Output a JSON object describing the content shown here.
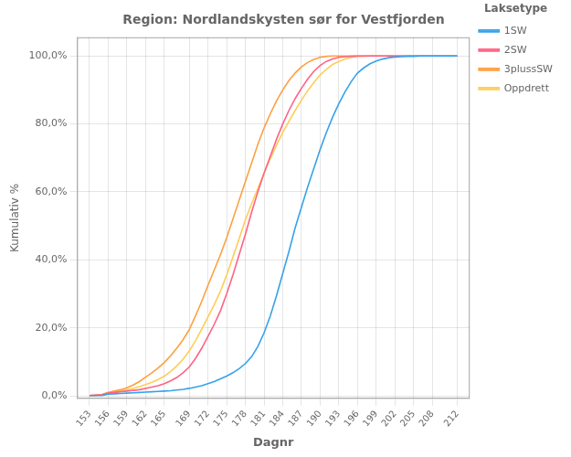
{
  "chart_data": {
    "type": "line",
    "title": "Region: Nordlandskysten sør for Vestfjorden",
    "x_label": "Dagnr",
    "y_label": "Kumulativ %",
    "legend_title": "Laksetype",
    "legend": "right",
    "grid": true,
    "xlim": [
      151,
      214
    ],
    "ylim": [
      -0.008,
      1.055
    ],
    "xticks": [
      153,
      156,
      159,
      162,
      165,
      169,
      172,
      175,
      178,
      181,
      184,
      187,
      190,
      193,
      196,
      199,
      202,
      205,
      208,
      212
    ],
    "yticks": [
      {
        "value": 0.0,
        "label": "0,0%"
      },
      {
        "value": 0.2,
        "label": "20,0%"
      },
      {
        "value": 0.4,
        "label": "40,0%"
      },
      {
        "value": 0.6,
        "label": "60,0%"
      },
      {
        "value": 0.8,
        "label": "80,0%"
      },
      {
        "value": 1.0,
        "label": "100,0%"
      }
    ],
    "x": [
      153,
      154,
      155,
      156,
      157,
      158,
      159,
      160,
      161,
      162,
      163,
      164,
      165,
      166,
      167,
      168,
      169,
      170,
      171,
      172,
      173,
      174,
      175,
      176,
      177,
      178,
      179,
      180,
      181,
      182,
      183,
      184,
      185,
      186,
      187,
      188,
      189,
      190,
      191,
      192,
      193,
      194,
      195,
      196,
      197,
      198,
      199,
      200,
      201,
      202,
      203,
      204,
      205,
      206,
      207,
      208,
      209,
      210,
      211,
      212
    ],
    "series": [
      {
        "name": "1SW",
        "values": [
          0.001,
          0.001,
          0.001,
          0.005,
          0.006,
          0.007,
          0.008,
          0.009,
          0.01,
          0.011,
          0.012,
          0.013,
          0.014,
          0.015,
          0.017,
          0.019,
          0.022,
          0.026,
          0.03,
          0.036,
          0.042,
          0.05,
          0.058,
          0.068,
          0.08,
          0.095,
          0.115,
          0.145,
          0.185,
          0.235,
          0.295,
          0.36,
          0.425,
          0.495,
          0.555,
          0.615,
          0.67,
          0.725,
          0.775,
          0.82,
          0.86,
          0.895,
          0.925,
          0.95,
          0.965,
          0.977,
          0.985,
          0.991,
          0.995,
          0.997,
          0.998,
          0.999,
          0.999,
          1.0,
          1.0,
          1.0,
          1.0,
          1.0,
          1.0,
          1.0
        ]
      },
      {
        "name": "2SW",
        "values": [
          0.001,
          0.002,
          0.003,
          0.008,
          0.01,
          0.012,
          0.014,
          0.016,
          0.018,
          0.022,
          0.026,
          0.03,
          0.036,
          0.044,
          0.054,
          0.068,
          0.085,
          0.11,
          0.14,
          0.175,
          0.21,
          0.25,
          0.3,
          0.355,
          0.415,
          0.475,
          0.54,
          0.6,
          0.655,
          0.705,
          0.755,
          0.8,
          0.84,
          0.875,
          0.905,
          0.932,
          0.955,
          0.972,
          0.984,
          0.991,
          0.996,
          0.998,
          0.999,
          1.0,
          1.0,
          1.0,
          1.0,
          1.0,
          1.0,
          1.0,
          1.0,
          1.0,
          1.0,
          1.0,
          1.0,
          1.0,
          1.0,
          1.0,
          1.0,
          1.0
        ]
      },
      {
        "name": "3plussSW",
        "values": [
          0.001,
          0.002,
          0.004,
          0.01,
          0.014,
          0.018,
          0.024,
          0.032,
          0.042,
          0.055,
          0.068,
          0.082,
          0.098,
          0.118,
          0.14,
          0.165,
          0.195,
          0.235,
          0.278,
          0.325,
          0.37,
          0.415,
          0.465,
          0.52,
          0.575,
          0.63,
          0.685,
          0.74,
          0.788,
          0.83,
          0.868,
          0.9,
          0.928,
          0.95,
          0.968,
          0.981,
          0.99,
          0.996,
          0.999,
          1.0,
          1.0,
          1.0,
          1.0,
          1.0,
          1.0,
          1.0,
          1.0,
          1.0,
          1.0,
          1.0,
          1.0,
          1.0,
          1.0,
          1.0,
          1.0,
          1.0,
          1.0,
          1.0,
          1.0,
          1.0
        ]
      },
      {
        "name": "Oppdrett",
        "values": [
          0.001,
          0.002,
          0.003,
          0.008,
          0.011,
          0.014,
          0.018,
          0.022,
          0.027,
          0.033,
          0.04,
          0.048,
          0.058,
          0.072,
          0.088,
          0.108,
          0.132,
          0.162,
          0.196,
          0.232,
          0.268,
          0.308,
          0.355,
          0.408,
          0.462,
          0.518,
          0.565,
          0.61,
          0.655,
          0.698,
          0.738,
          0.775,
          0.808,
          0.84,
          0.87,
          0.898,
          0.922,
          0.944,
          0.961,
          0.975,
          0.984,
          0.991,
          0.996,
          0.998,
          0.999,
          1.0,
          1.0,
          1.0,
          1.0,
          1.0,
          1.0,
          1.0,
          1.0,
          1.0,
          1.0,
          1.0,
          1.0,
          1.0,
          1.0,
          1.0
        ]
      }
    ]
  }
}
